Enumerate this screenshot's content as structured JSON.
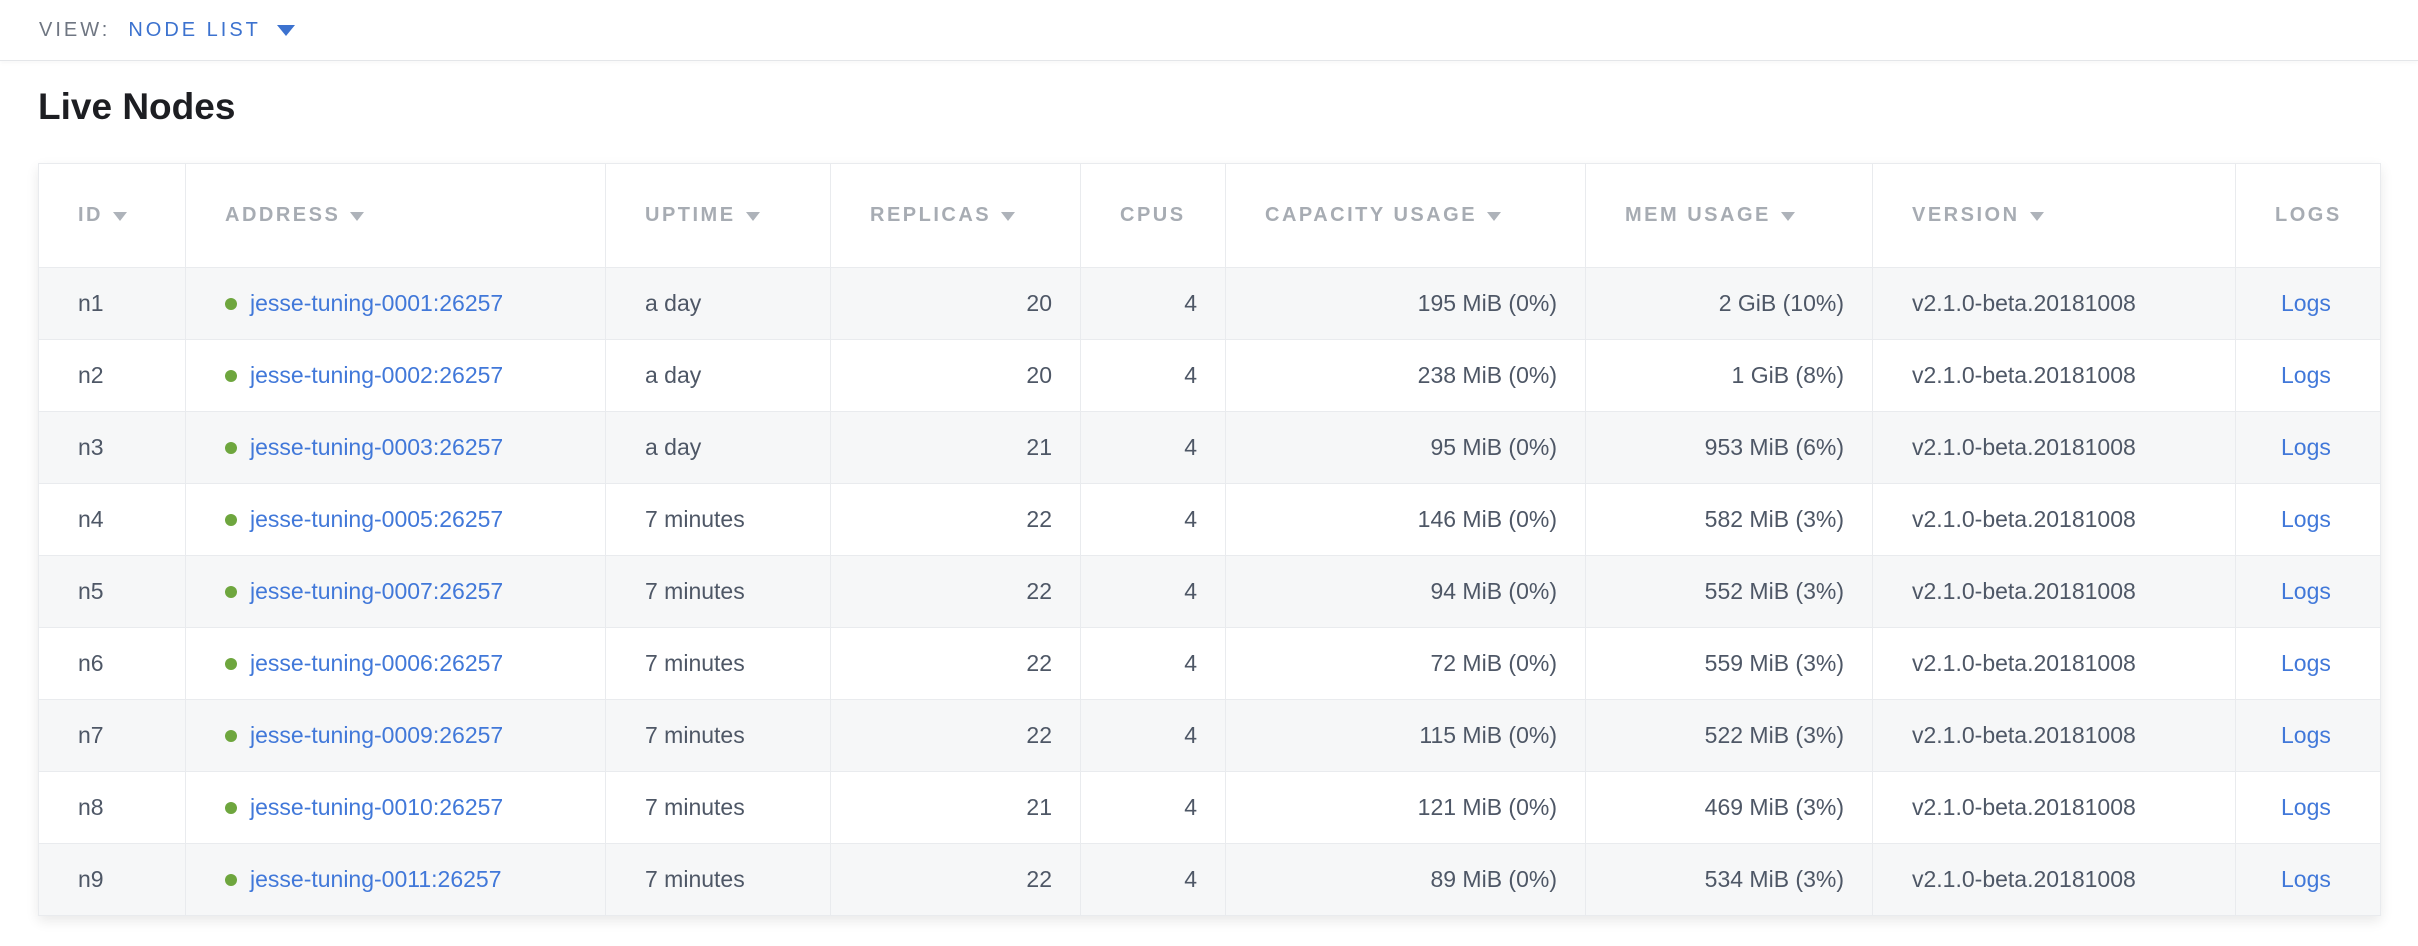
{
  "view_bar": {
    "label": "VIEW:",
    "selected_view": "NODE LIST",
    "caret_icon": "caret-down-triangle"
  },
  "page": {
    "title": "Live Nodes"
  },
  "colors": {
    "accent_blue": "#3c72cf",
    "link_blue": "#4178d9",
    "live_dot_green": "#6ea63e",
    "header_text": "#a7acb3",
    "cell_text": "#4e5766",
    "row_stripe": "#f6f7f8",
    "border": "#e9ebee"
  },
  "icons": {
    "sort_icon": "triangle-down",
    "live_status_icon": "filled-circle"
  },
  "table": {
    "columns": [
      {
        "key": "id",
        "label": "ID",
        "sortable": true,
        "align": "left"
      },
      {
        "key": "address",
        "label": "ADDRESS",
        "sortable": true,
        "align": "left"
      },
      {
        "key": "uptime",
        "label": "UPTIME",
        "sortable": true,
        "align": "left"
      },
      {
        "key": "replicas",
        "label": "REPLICAS",
        "sortable": true,
        "align": "right"
      },
      {
        "key": "cpus",
        "label": "CPUS",
        "sortable": false,
        "align": "right"
      },
      {
        "key": "capacity",
        "label": "CAPACITY USAGE",
        "sortable": true,
        "align": "right"
      },
      {
        "key": "mem",
        "label": "MEM USAGE",
        "sortable": true,
        "align": "right"
      },
      {
        "key": "version",
        "label": "VERSION",
        "sortable": true,
        "align": "left"
      },
      {
        "key": "logs",
        "label": "LOGS",
        "sortable": false,
        "align": "left"
      }
    ],
    "rows": [
      {
        "id": "n1",
        "status": "live",
        "address": "jesse-tuning-0001:26257",
        "uptime": "a day",
        "replicas": "20",
        "cpus": "4",
        "capacity": "195 MiB (0%)",
        "mem": "2 GiB (10%)",
        "version": "v2.1.0-beta.20181008",
        "logs": "Logs"
      },
      {
        "id": "n2",
        "status": "live",
        "address": "jesse-tuning-0002:26257",
        "uptime": "a day",
        "replicas": "20",
        "cpus": "4",
        "capacity": "238 MiB (0%)",
        "mem": "1 GiB (8%)",
        "version": "v2.1.0-beta.20181008",
        "logs": "Logs"
      },
      {
        "id": "n3",
        "status": "live",
        "address": "jesse-tuning-0003:26257",
        "uptime": "a day",
        "replicas": "21",
        "cpus": "4",
        "capacity": "95 MiB (0%)",
        "mem": "953 MiB (6%)",
        "version": "v2.1.0-beta.20181008",
        "logs": "Logs"
      },
      {
        "id": "n4",
        "status": "live",
        "address": "jesse-tuning-0005:26257",
        "uptime": "7 minutes",
        "replicas": "22",
        "cpus": "4",
        "capacity": "146 MiB (0%)",
        "mem": "582 MiB (3%)",
        "version": "v2.1.0-beta.20181008",
        "logs": "Logs"
      },
      {
        "id": "n5",
        "status": "live",
        "address": "jesse-tuning-0007:26257",
        "uptime": "7 minutes",
        "replicas": "22",
        "cpus": "4",
        "capacity": "94 MiB (0%)",
        "mem": "552 MiB (3%)",
        "version": "v2.1.0-beta.20181008",
        "logs": "Logs"
      },
      {
        "id": "n6",
        "status": "live",
        "address": "jesse-tuning-0006:26257",
        "uptime": "7 minutes",
        "replicas": "22",
        "cpus": "4",
        "capacity": "72 MiB (0%)",
        "mem": "559 MiB (3%)",
        "version": "v2.1.0-beta.20181008",
        "logs": "Logs"
      },
      {
        "id": "n7",
        "status": "live",
        "address": "jesse-tuning-0009:26257",
        "uptime": "7 minutes",
        "replicas": "22",
        "cpus": "4",
        "capacity": "115 MiB (0%)",
        "mem": "522 MiB (3%)",
        "version": "v2.1.0-beta.20181008",
        "logs": "Logs"
      },
      {
        "id": "n8",
        "status": "live",
        "address": "jesse-tuning-0010:26257",
        "uptime": "7 minutes",
        "replicas": "21",
        "cpus": "4",
        "capacity": "121 MiB (0%)",
        "mem": "469 MiB (3%)",
        "version": "v2.1.0-beta.20181008",
        "logs": "Logs"
      },
      {
        "id": "n9",
        "status": "live",
        "address": "jesse-tuning-0011:26257",
        "uptime": "7 minutes",
        "replicas": "22",
        "cpus": "4",
        "capacity": "89 MiB (0%)",
        "mem": "534 MiB (3%)",
        "version": "v2.1.0-beta.20181008",
        "logs": "Logs"
      }
    ]
  }
}
